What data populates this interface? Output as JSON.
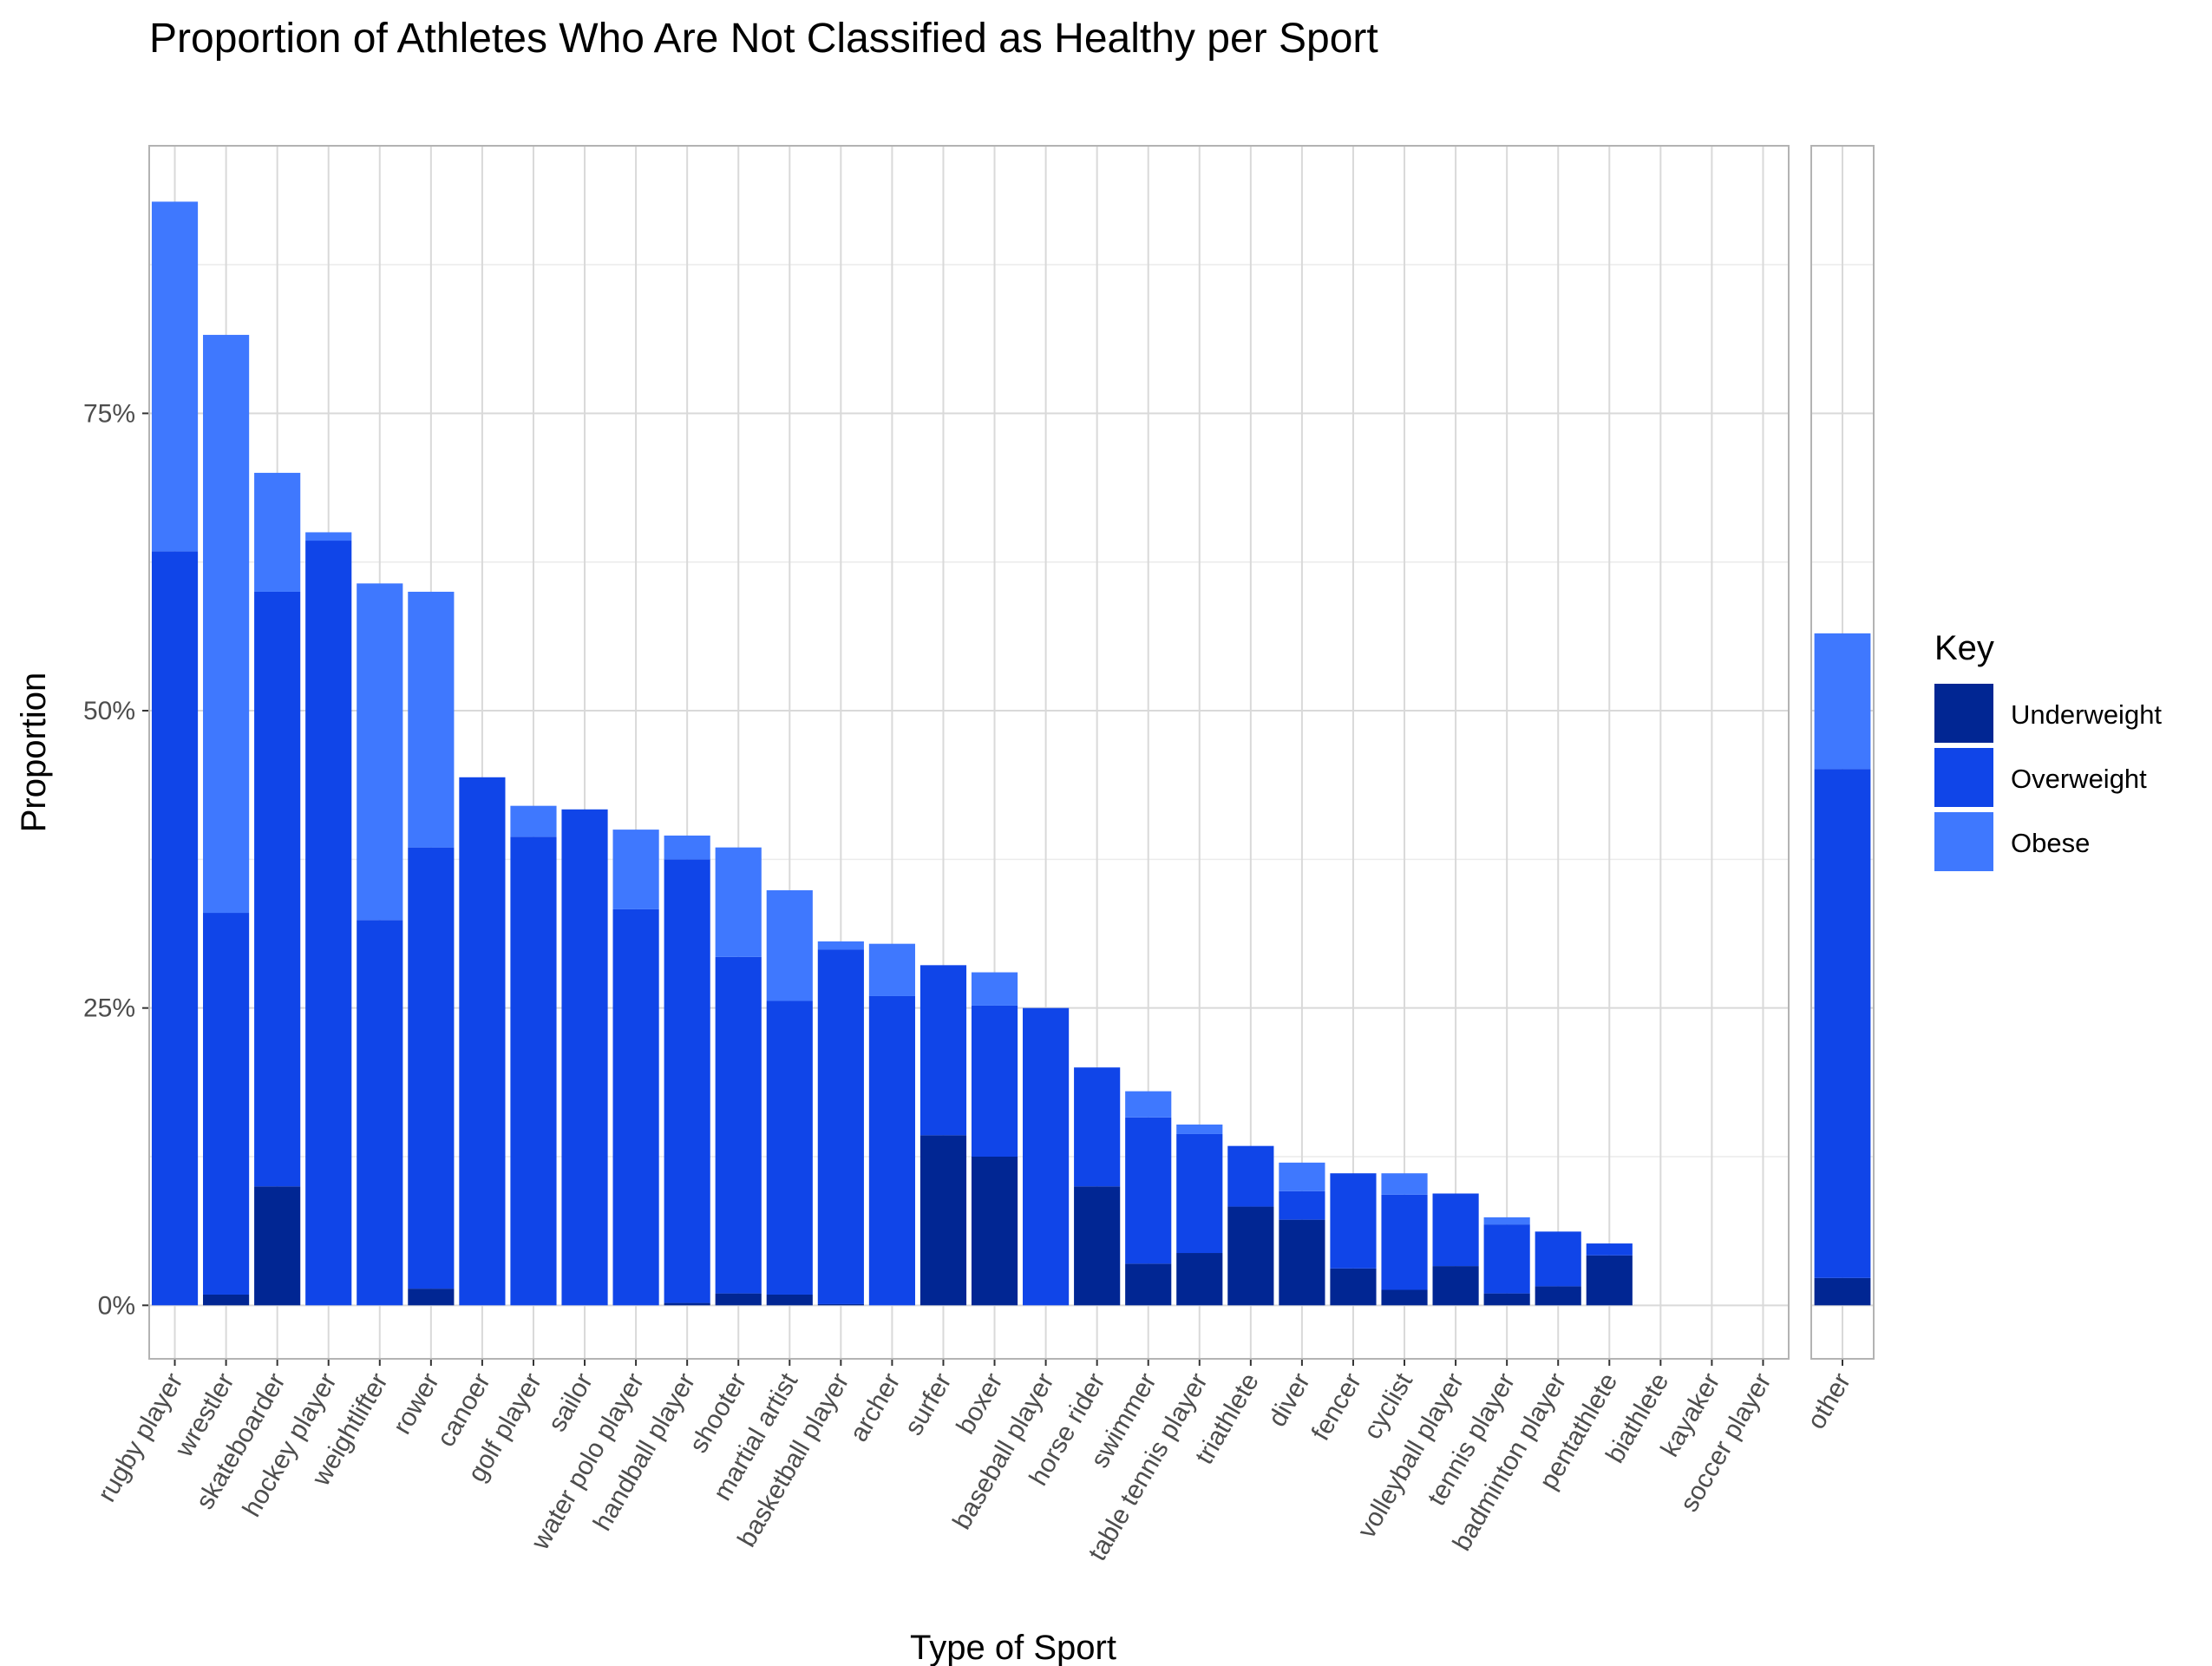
{
  "chart_data": {
    "type": "bar",
    "stacked": true,
    "title": "Proportion of Athletes Who Are Not Classified as Healthy per Sport",
    "xlabel": "Type of Sport",
    "ylabel": "Proportion",
    "ylim": [
      -0.045,
      0.975
    ],
    "yticks": [
      0,
      0.25,
      0.5,
      0.75
    ],
    "ytick_labels": [
      "0%",
      "25%",
      "50%",
      "75%"
    ],
    "grid": true,
    "legend": {
      "title": "Key",
      "position": "right",
      "entries": [
        {
          "label": "Underweight",
          "color": "#012693"
        },
        {
          "label": "Overweight",
          "color": "#1045e8"
        },
        {
          "label": "Obese",
          "color": "#3f78fe"
        }
      ]
    },
    "panels": [
      {
        "categories": [
          "rugby player",
          "wrestler",
          "skateboarder",
          "hockey player",
          "weightlifter",
          "rower",
          "canoer",
          "golf player",
          "sailor",
          "water polo player",
          "handball player",
          "shooter",
          "martial artist",
          "basketball player",
          "archer",
          "surfer",
          "boxer",
          "baseball player",
          "horse rider",
          "swimmer",
          "table tennis player",
          "triathlete",
          "diver",
          "fencer",
          "cyclist",
          "volleyball player",
          "tennis player",
          "badminton player",
          "pentathlete",
          "biathlete",
          "kayaker",
          "soccer player"
        ],
        "series": [
          {
            "name": "Underweight",
            "values": [
              0,
              0.009,
              0.1,
              0,
              0,
              0.014,
              0,
              0,
              0,
              0,
              0.002,
              0.01,
              0.009,
              0.001,
              0,
              0.143,
              0.125,
              0,
              0.1,
              0.035,
              0.044,
              0.083,
              0.072,
              0.031,
              0.013,
              0.033,
              0.01,
              0.016,
              0.042,
              0,
              0,
              0
            ]
          },
          {
            "name": "Overweight",
            "values": [
              0.634,
              0.321,
              0.5,
              0.643,
              0.324,
              0.371,
              0.444,
              0.394,
              0.417,
              0.333,
              0.373,
              0.283,
              0.247,
              0.298,
              0.26,
              0.143,
              0.127,
              0.25,
              0.1,
              0.123,
              0.1,
              0.051,
              0.024,
              0.08,
              0.08,
              0.061,
              0.058,
              0.046,
              0.01,
              0,
              0,
              0
            ]
          },
          {
            "name": "Obese",
            "values": [
              0.294,
              0.486,
              0.1,
              0.007,
              0.283,
              0.215,
              0,
              0.026,
              0,
              0.067,
              0.02,
              0.092,
              0.093,
              0.007,
              0.044,
              0,
              0.028,
              0,
              0,
              0.022,
              0.008,
              0,
              0.024,
              0,
              0.018,
              0,
              0.006,
              0,
              0,
              0,
              0,
              0
            ]
          }
        ]
      },
      {
        "categories": [
          "other"
        ],
        "series": [
          {
            "name": "Underweight",
            "values": [
              0.023
            ]
          },
          {
            "name": "Overweight",
            "values": [
              0.428
            ]
          },
          {
            "name": "Obese",
            "values": [
              0.114
            ]
          }
        ]
      }
    ]
  }
}
